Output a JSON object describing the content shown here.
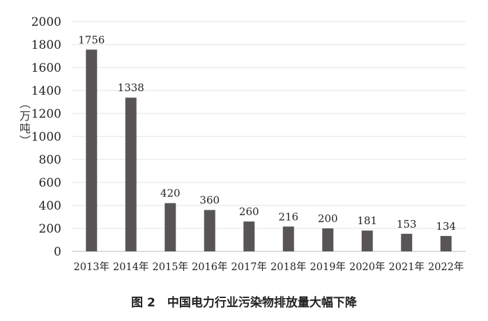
{
  "chart_data": {
    "type": "bar",
    "title": "",
    "caption": "图 2　中国电力行业污染物排放量大幅下降",
    "ylabel": "（万吨）",
    "xlabel": "",
    "categories": [
      "2013年",
      "2014年",
      "2015年",
      "2016年",
      "2017年",
      "2018年",
      "2019年",
      "2020年",
      "2021年",
      "2022年"
    ],
    "values": [
      1756,
      1338,
      420,
      360,
      260,
      216,
      200,
      181,
      153,
      134
    ],
    "ylim": [
      0,
      2000
    ],
    "yticks": [
      0,
      200,
      400,
      600,
      800,
      1000,
      1200,
      1400,
      1600,
      1800,
      2000
    ],
    "grid": true,
    "bar_color": "#595556",
    "data_labels": true
  }
}
